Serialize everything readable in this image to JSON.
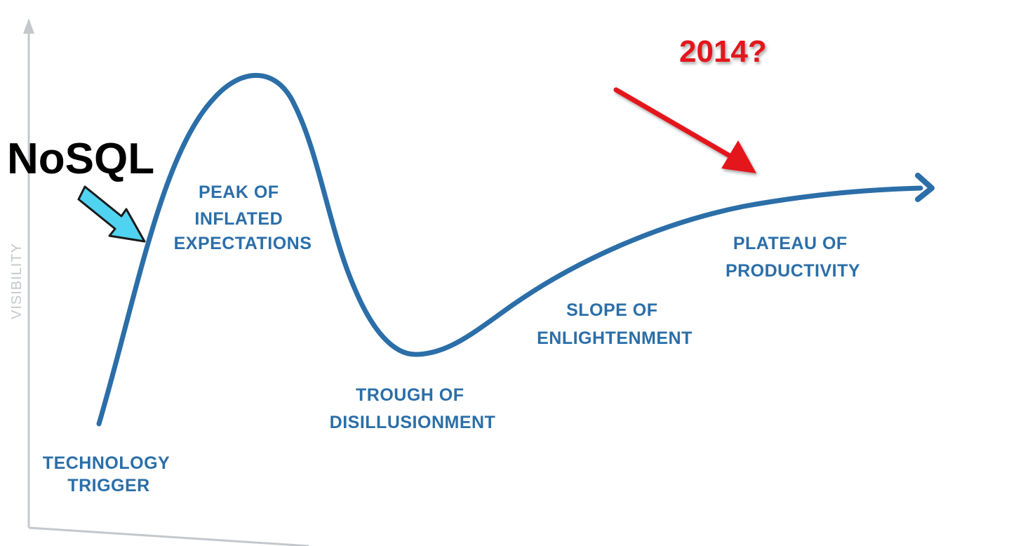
{
  "axis": {
    "y_label": "VISIBILITY"
  },
  "phases": {
    "technology_trigger": [
      "TECHNOLOGY",
      "TRIGGER"
    ],
    "peak": [
      "PEAK OF",
      "INFLATED",
      "EXPECTATIONS"
    ],
    "trough": [
      "TROUGH OF",
      "DISILLUSIONMENT"
    ],
    "slope": [
      "SLOPE OF",
      "ENLIGHTENMENT"
    ],
    "plateau": [
      "PLATEAU OF",
      "PRODUCTIVITY"
    ]
  },
  "annotations": {
    "nosql": "NoSQL",
    "year": "2014?"
  },
  "colors": {
    "curve": "#2b6ea8",
    "axis": "#c4c8cc",
    "nosql_arrow": "#4fd3f0",
    "year_arrow": "#e3151a"
  }
}
